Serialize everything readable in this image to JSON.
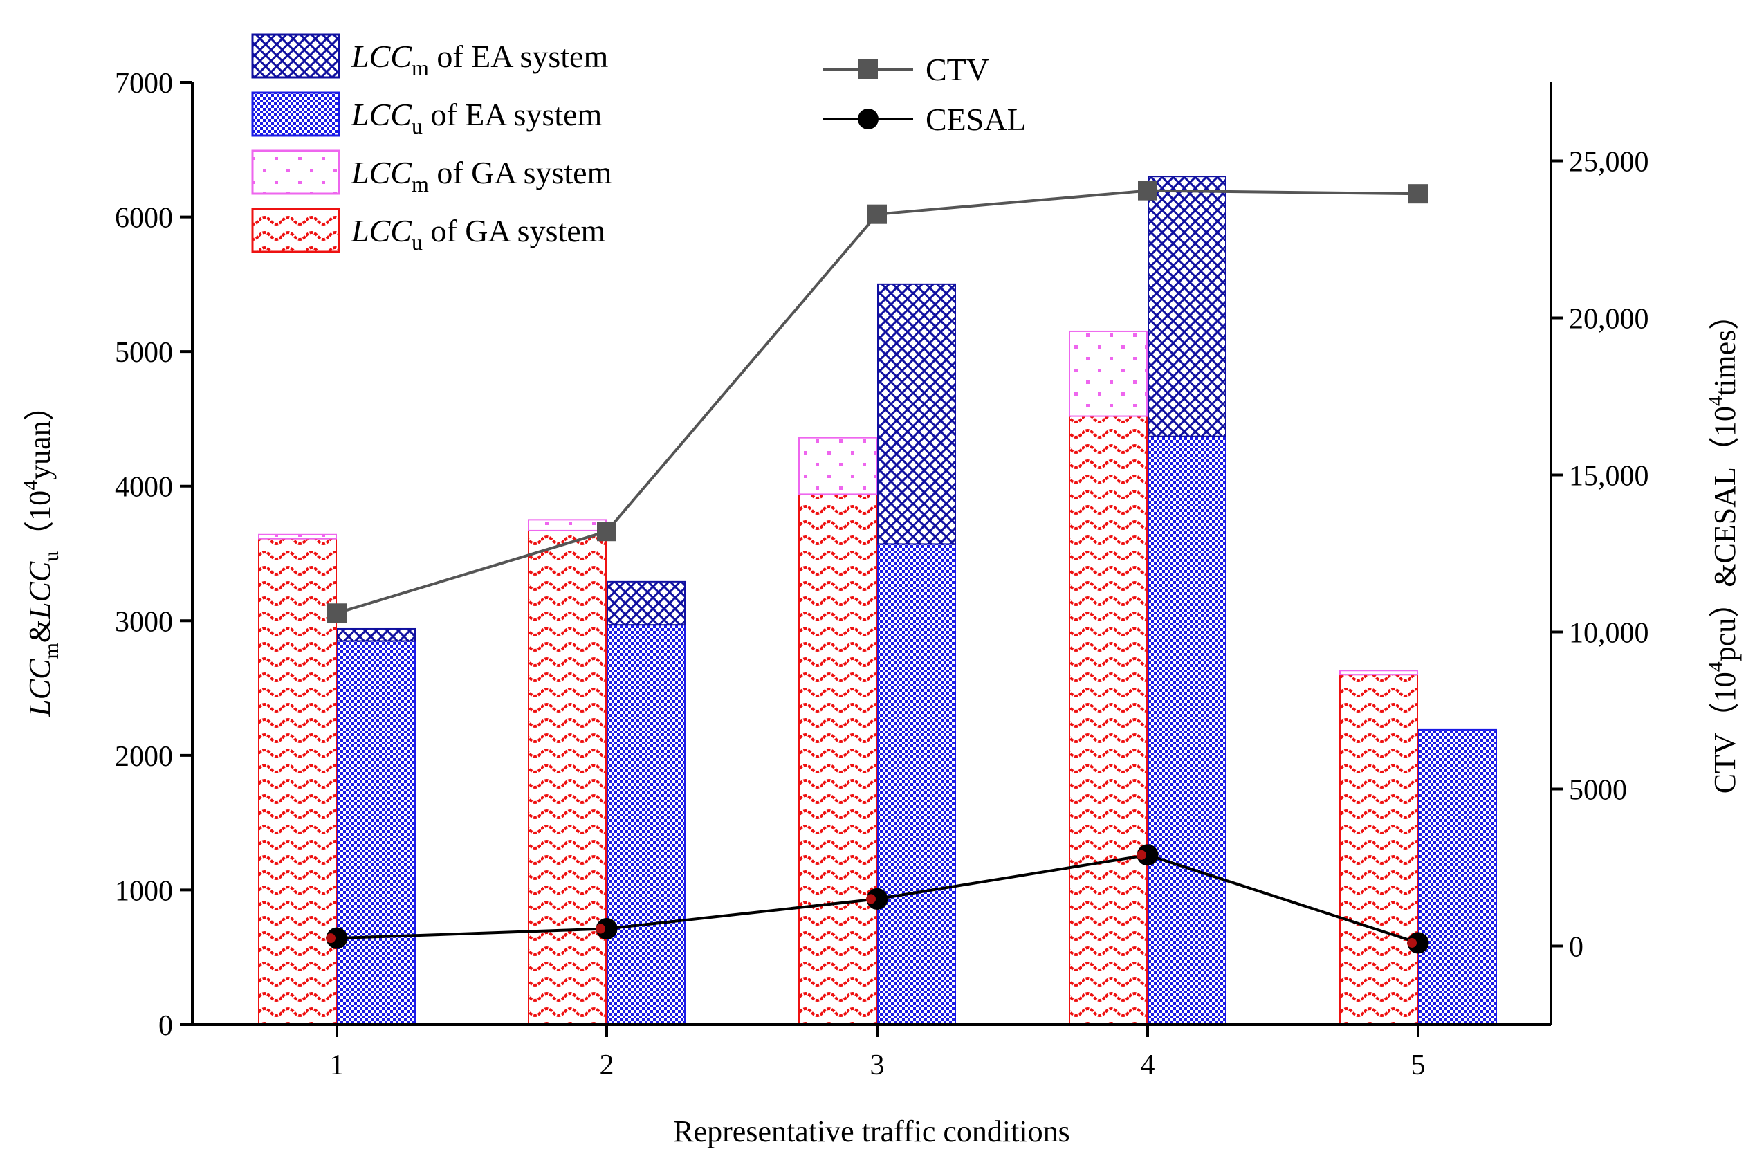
{
  "chart_data": {
    "type": "bar",
    "xlabel": "Representative traffic conditions",
    "ylabel": {
      "prefix_1": "LCC",
      "sub_1": "m",
      "mid": "&",
      "prefix_2": "LCC",
      "sub_2": "u",
      "unit_open": "（10",
      "unit_sup": "4",
      "unit_close": "yuan）"
    },
    "ylabel_right": {
      "part_1": "CTV（10",
      "sup_1": "4",
      "part_2": "pcu）&CESAL（10",
      "sup_2": "4",
      "part_3": "times）"
    },
    "categories": [
      "1",
      "2",
      "3",
      "4",
      "5"
    ],
    "ylim": [
      0,
      7000
    ],
    "y_ticks": [
      "0",
      "1000",
      "2000",
      "3000",
      "4000",
      "5000",
      "6000",
      "7000"
    ],
    "y_tick_values": [
      0,
      1000,
      2000,
      3000,
      4000,
      5000,
      6000,
      7000
    ],
    "ylim_right": [
      -2500,
      27500
    ],
    "y2_ticks": [
      "0",
      "5000",
      "10,000",
      "15,000",
      "20,000",
      "25,000"
    ],
    "y2_tick_values": [
      0,
      5000,
      10000,
      15000,
      20000,
      25000
    ],
    "series": [
      {
        "name": "LCCm of EA system",
        "legend_main": "LCC",
        "legend_sub": "m",
        "legend_rest": " of EA system",
        "stack": "EA",
        "color": "#1010a0",
        "pattern": "crosshatch",
        "values": [
          90,
          320,
          1930,
          1930,
          0
        ]
      },
      {
        "name": "LCCu of EA system",
        "legend_main": "LCC",
        "legend_sub": "u",
        "legend_rest": " of EA system",
        "stack": "EA",
        "color": "#1a1ae6",
        "pattern": "checker",
        "values": [
          2850,
          2970,
          3570,
          4370,
          2190
        ]
      },
      {
        "name": "LCCm of GA system",
        "legend_main": "LCC",
        "legend_sub": "m",
        "legend_rest": " of GA system",
        "stack": "GA",
        "color": "#ee66ee",
        "pattern": "dots",
        "values": [
          30,
          80,
          420,
          630,
          30
        ]
      },
      {
        "name": "LCCu of GA system",
        "legend_main": "LCC",
        "legend_sub": "u",
        "legend_rest": " of GA system",
        "stack": "GA",
        "color": "#ee1111",
        "pattern": "wave",
        "values": [
          3610,
          3670,
          3940,
          4520,
          2600
        ]
      }
    ],
    "lines": [
      {
        "name": "CTV",
        "color": "#555555",
        "marker": "square",
        "values": [
          10600,
          13200,
          23300,
          24050,
          23950
        ]
      },
      {
        "name": "CESAL",
        "color": "#000000",
        "marker": "circle",
        "values": [
          250,
          550,
          1500,
          2900,
          100
        ]
      }
    ]
  }
}
